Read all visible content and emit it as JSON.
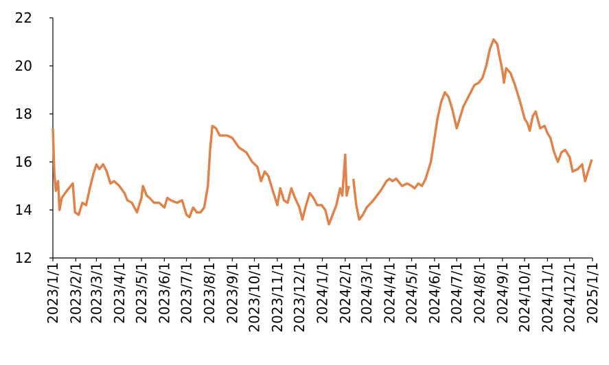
{
  "chart_data": {
    "type": "line",
    "x": [
      "2023/1/1",
      "2023/1/3",
      "2023/1/5",
      "2023/1/8",
      "2023/1/10",
      "2023/1/13",
      "2023/1/20",
      "2023/1/28",
      "2023/1/31",
      "2023/2/5",
      "2023/2/10",
      "2023/2/15",
      "2023/2/20",
      "2023/2/25",
      "2023/3/1",
      "2023/3/5",
      "2023/3/10",
      "2023/3/15",
      "2023/3/20",
      "2023/3/25",
      "2023/4/1",
      "2023/4/8",
      "2023/4/12",
      "2023/4/18",
      "2023/4/25",
      "2023/5/1",
      "2023/5/3",
      "2023/5/8",
      "2023/5/12",
      "2023/5/18",
      "2023/5/25",
      "2023/6/1",
      "2023/6/5",
      "2023/6/10",
      "2023/6/18",
      "2023/6/25",
      "2023/7/1",
      "2023/7/5",
      "2023/7/10",
      "2023/7/15",
      "2023/7/20",
      "2023/7/25",
      "2023/7/30",
      "2023/8/2",
      "2023/8/5",
      "2023/8/10",
      "2023/8/15",
      "2023/8/25",
      "2023/9/1",
      "2023/9/10",
      "2023/9/20",
      "2023/9/28",
      "2023/10/5",
      "2023/10/10",
      "2023/10/15",
      "2023/10/20",
      "2023/10/25",
      "2023/11/1",
      "2023/11/5",
      "2023/11/10",
      "2023/11/15",
      "2023/11/20",
      "2023/11/25",
      "2023/12/1",
      "2023/12/5",
      "2023/12/10",
      "2023/12/15",
      "2023/12/20",
      "2023/12/25",
      "2023/12/31",
      "2024/1/5",
      "2024/1/10",
      "2024/1/15",
      "2024/1/20",
      "2024/1/25",
      "2024/1/28",
      "2024/2/1",
      "2024/2/3",
      "2024/2/6",
      "2024/2/9",
      "2024/2/12",
      "2024/2/16",
      "2024/2/20",
      "2024/2/25",
      "2024/3/1",
      "2024/3/10",
      "2024/3/20",
      "2024/3/28",
      "2024/4/1",
      "2024/4/5",
      "2024/4/10",
      "2024/4/18",
      "2024/4/25",
      "2024/5/1",
      "2024/5/5",
      "2024/5/10",
      "2024/5/15",
      "2024/5/20",
      "2024/5/27",
      "2024/6/1",
      "2024/6/5",
      "2024/6/10",
      "2024/6/15",
      "2024/6/20",
      "2024/6/25",
      "2024/7/1",
      "2024/7/5",
      "2024/7/10",
      "2024/7/15",
      "2024/7/20",
      "2024/7/25",
      "2024/7/31",
      "2024/8/5",
      "2024/8/10",
      "2024/8/15",
      "2024/8/20",
      "2024/8/25",
      "2024/8/28",
      "2024/9/1",
      "2024/9/3",
      "2024/9/6",
      "2024/9/12",
      "2024/9/18",
      "2024/9/25",
      "2024/10/1",
      "2024/10/5",
      "2024/10/8",
      "2024/10/12",
      "2024/10/16",
      "2024/10/22",
      "2024/10/28",
      "2024/11/1",
      "2024/11/5",
      "2024/11/10",
      "2024/11/15",
      "2024/11/20",
      "2024/11/25",
      "2024/12/1",
      "2024/12/5",
      "2024/12/12",
      "2024/12/18",
      "2024/12/22",
      "2024/12/26",
      "2024/12/31"
    ],
    "series": [
      {
        "color": "#e0834a",
        "values": [
          17.4,
          15.5,
          14.8,
          15.2,
          14.0,
          14.5,
          14.8,
          15.1,
          13.9,
          13.8,
          14.3,
          14.2,
          14.9,
          15.5,
          15.9,
          15.7,
          15.9,
          15.6,
          15.1,
          15.2,
          15.0,
          14.7,
          14.4,
          14.3,
          13.9,
          14.5,
          15.0,
          14.6,
          14.5,
          14.3,
          14.3,
          14.1,
          14.5,
          14.4,
          14.3,
          14.4,
          13.8,
          13.7,
          14.1,
          13.9,
          13.9,
          14.1,
          15.0,
          16.5,
          17.5,
          17.4,
          17.1,
          17.1,
          17.0,
          16.6,
          16.4,
          16.0,
          15.8,
          15.2,
          15.6,
          15.4,
          14.9,
          14.2,
          14.9,
          14.4,
          14.3,
          14.9,
          14.5,
          14.1,
          13.6,
          14.2,
          14.7,
          14.5,
          14.2,
          14.2,
          14.0,
          13.4,
          13.8,
          14.2,
          14.9,
          14.6,
          16.3,
          14.6,
          15.0,
          null,
          15.3,
          14.2,
          13.6,
          13.8,
          14.1,
          14.4,
          14.8,
          15.2,
          15.3,
          15.2,
          15.3,
          15.0,
          15.1,
          15.0,
          14.9,
          15.1,
          15.0,
          15.3,
          16.0,
          17.0,
          17.8,
          18.5,
          18.9,
          18.7,
          18.2,
          17.4,
          17.8,
          18.3,
          18.6,
          18.9,
          19.2,
          19.3,
          19.5,
          20.0,
          20.7,
          21.1,
          20.9,
          20.4,
          19.8,
          19.3,
          19.9,
          19.7,
          19.2,
          18.5,
          17.8,
          17.6,
          17.3,
          17.9,
          18.1,
          17.4,
          17.5,
          17.2,
          17.0,
          16.4,
          16.0,
          16.4,
          16.5,
          16.2,
          15.6,
          15.7,
          15.9,
          15.2,
          15.6,
          16.1
        ]
      }
    ],
    "ylim": [
      12,
      22
    ],
    "yticks": [
      12,
      14,
      16,
      18,
      20,
      22
    ],
    "xlim": [
      "2023/1/1",
      "2025/1/1"
    ],
    "xticks": [
      "2023/1/1",
      "2023/2/1",
      "2023/3/1",
      "2023/4/1",
      "2023/5/1",
      "2023/6/1",
      "2023/7/1",
      "2023/8/1",
      "2023/9/1",
      "2023/10/1",
      "2023/11/1",
      "2023/12/1",
      "2024/1/1",
      "2024/2/1",
      "2024/3/1",
      "2024/4/1",
      "2024/5/1",
      "2024/6/1",
      "2024/7/1",
      "2024/8/1",
      "2024/9/1",
      "2024/10/1",
      "2024/11/1",
      "2024/12/1",
      "2025/1/1"
    ]
  }
}
